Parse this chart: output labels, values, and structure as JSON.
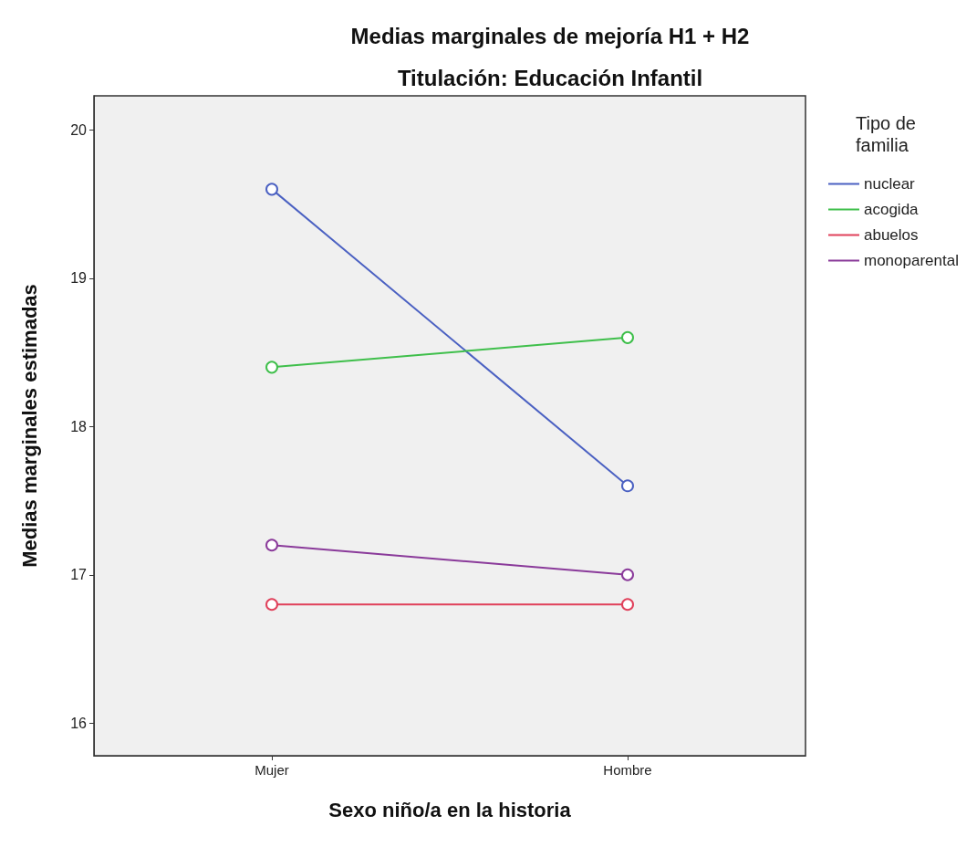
{
  "chart_data": {
    "type": "line",
    "title": "Medias marginales de mejoría H1 + H2",
    "subtitle": "Titulación: Educación Infantil",
    "xlabel": "Sexo niño/a en la historia",
    "ylabel": "Medias marginales estimadas",
    "legend_title": "Tipo de familia",
    "categories": [
      "Mujer",
      "Hombre"
    ],
    "series": [
      {
        "name": "nuclear",
        "color": "#4b61c2",
        "values": [
          19.6,
          17.6
        ]
      },
      {
        "name": "acogida",
        "color": "#3fbf4b",
        "values": [
          18.4,
          18.6
        ]
      },
      {
        "name": "abuelos",
        "color": "#e0405a",
        "values": [
          16.8,
          16.8
        ]
      },
      {
        "name": "monoparental",
        "color": "#8a3a9a",
        "values": [
          17.2,
          17.0
        ]
      }
    ],
    "ylim": [
      15.78,
      20.23
    ],
    "yticks": [
      16,
      17,
      18,
      19,
      20
    ],
    "grid": false,
    "legend": "right",
    "marker": "circle",
    "line_style": "solid"
  }
}
